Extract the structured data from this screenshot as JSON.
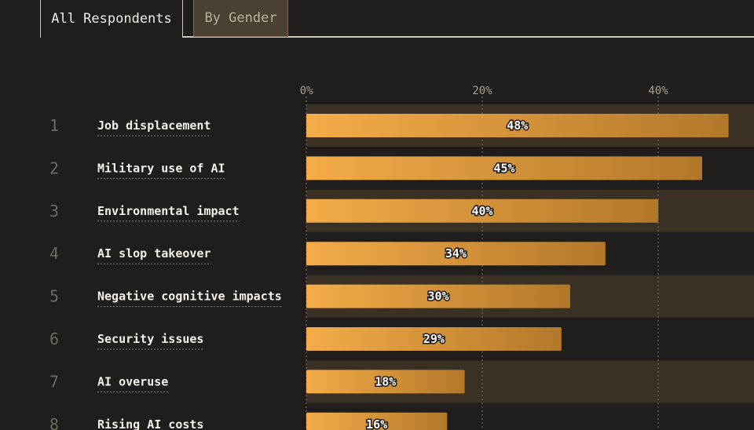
{
  "tabs": [
    {
      "label": "All Respondents",
      "active": true
    },
    {
      "label": "By Gender",
      "active": false
    }
  ],
  "colors": {
    "background": "#201e1c",
    "band": "#3a3024",
    "bar_start": "#f4ac48",
    "bar_end": "#b2782a",
    "grid": "#7a7266"
  },
  "chart_data": {
    "type": "bar",
    "orientation": "horizontal",
    "categories": [
      "Job displacement",
      "Military use of AI",
      "Environmental impact",
      "AI slop takeover",
      "Negative cognitive impacts",
      "Security issues",
      "AI overuse",
      "Rising AI costs"
    ],
    "ranks": [
      "1",
      "2",
      "3",
      "4",
      "5",
      "6",
      "7",
      "8"
    ],
    "values": [
      48,
      45,
      40,
      34,
      30,
      29,
      18,
      16
    ],
    "value_labels": [
      "48%",
      "45%",
      "40%",
      "34%",
      "30%",
      "29%",
      "18%",
      "16%"
    ],
    "x_ticks": [
      {
        "value": 0,
        "label": "0%"
      },
      {
        "value": 20,
        "label": "20%"
      },
      {
        "value": 40,
        "label": "40%"
      }
    ],
    "xlim": [
      0,
      51
    ],
    "grid": true,
    "title": "",
    "xlabel": "",
    "ylabel": ""
  }
}
